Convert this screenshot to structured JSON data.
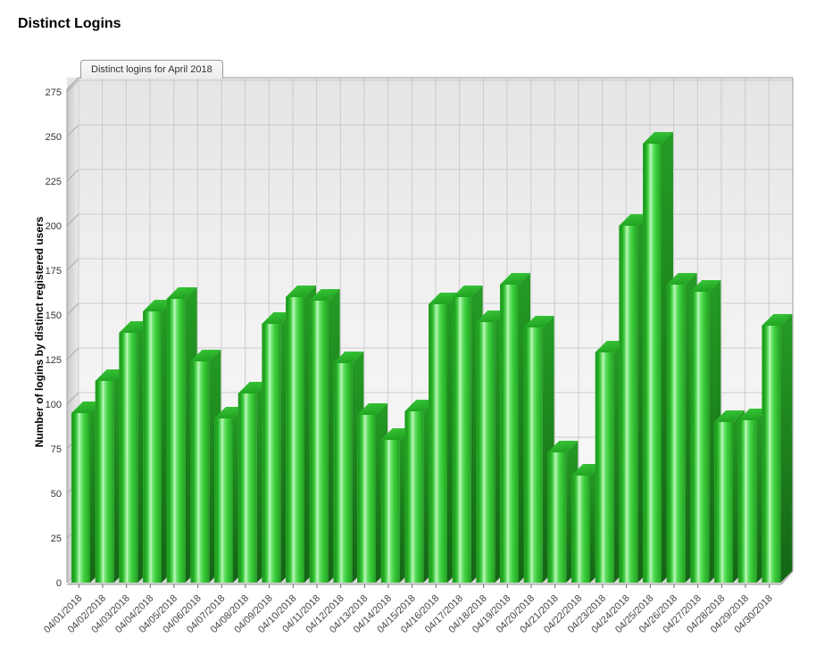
{
  "page": {
    "title": "Distinct Logins"
  },
  "chart": {
    "tab_label": "Distinct logins for April 2018",
    "ylabel": "Number of logins by distinct registered users",
    "colors": {
      "bar_front_edge": "#2aa82a",
      "bar_front_mid": "#3ecf3e",
      "bar_front_highlight": "#c6f7c6",
      "bar_top": "#2fbd2f",
      "bar_side": "#1b8a1b",
      "grid": "#cbcbcb",
      "frame": "#9c9c9c",
      "plot_bg_top": "#e5e5e5",
      "plot_bg_bottom": "#fbfbfb",
      "tick_text": "#333333"
    }
  },
  "chart_data": {
    "type": "bar",
    "style": "3d-vertical",
    "title": "Distinct logins for April 2018",
    "xlabel": "",
    "ylabel": "Number of logins by distinct registered users",
    "ylim": [
      0,
      275
    ],
    "ytick_interval": 25,
    "yticks": [
      0,
      25,
      50,
      75,
      100,
      125,
      150,
      175,
      200,
      225,
      250,
      275
    ],
    "grid": true,
    "legend_position": "none",
    "bar_color": "#33cc33",
    "categories": [
      "04/01/2018",
      "04/02/2018",
      "04/03/2018",
      "04/04/2018",
      "04/05/2018",
      "04/06/2018",
      "04/07/2018",
      "04/08/2018",
      "04/09/2018",
      "04/10/2018",
      "04/11/2018",
      "04/12/2018",
      "04/13/2018",
      "04/14/2018",
      "04/15/2018",
      "04/16/2018",
      "04/17/2018",
      "04/18/2018",
      "04/19/2018",
      "04/20/2018",
      "04/21/2018",
      "04/22/2018",
      "04/23/2018",
      "04/24/2018",
      "04/25/2018",
      "04/26/2018",
      "04/27/2018",
      "04/28/2018",
      "04/29/2018",
      "04/30/2018"
    ],
    "values": [
      95,
      113,
      140,
      152,
      159,
      124,
      92,
      106,
      145,
      160,
      158,
      123,
      94,
      80,
      96,
      156,
      160,
      146,
      167,
      143,
      73,
      60,
      129,
      200,
      246,
      167,
      163,
      90,
      91,
      144
    ]
  }
}
